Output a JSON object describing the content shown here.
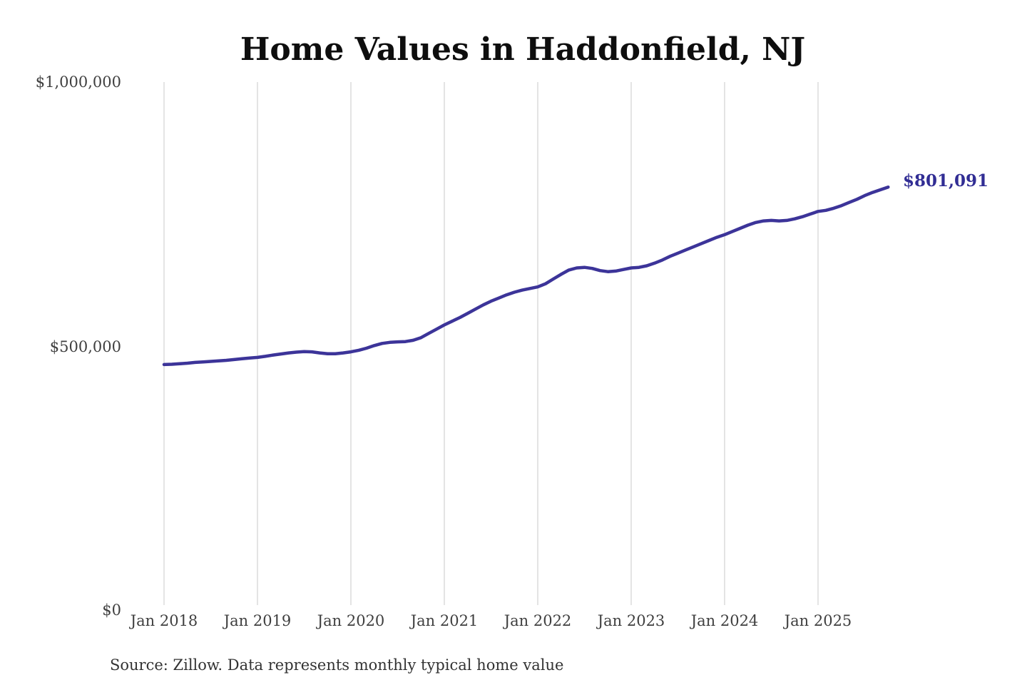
{
  "chart_data": {
    "type": "line",
    "title": "Home Values in Haddonfield, NJ",
    "source_note": "Source: Zillow. Data represents monthly typical home value",
    "end_label": "$801,091",
    "latest_value": 801091,
    "line_color": "#3c3499",
    "end_label_color": "#312d94",
    "gridline_color": "#c9c9c9",
    "grid": "vertical-only",
    "ylim": [
      0,
      1000000
    ],
    "y_ticks": [
      {
        "label": "$1,000,000",
        "value": 1000000
      },
      {
        "label": "$500,000",
        "value": 500000
      },
      {
        "label": "$0",
        "value": 0
      }
    ],
    "x_ticks": [
      "Jan 2018",
      "Jan 2019",
      "Jan 2020",
      "Jan 2021",
      "Jan 2022",
      "Jan 2023",
      "Jan 2024",
      "Jan 2025"
    ],
    "series": [
      {
        "name": "Typical home value",
        "months": [
          "2018-01",
          "2018-02",
          "2018-03",
          "2018-04",
          "2018-05",
          "2018-06",
          "2018-07",
          "2018-08",
          "2018-09",
          "2018-10",
          "2018-11",
          "2018-12",
          "2019-01",
          "2019-02",
          "2019-03",
          "2019-04",
          "2019-05",
          "2019-06",
          "2019-07",
          "2019-08",
          "2019-09",
          "2019-10",
          "2019-11",
          "2019-12",
          "2020-01",
          "2020-02",
          "2020-03",
          "2020-04",
          "2020-05",
          "2020-06",
          "2020-07",
          "2020-08",
          "2020-09",
          "2020-10",
          "2020-11",
          "2020-12",
          "2021-01",
          "2021-02",
          "2021-03",
          "2021-04",
          "2021-05",
          "2021-06",
          "2021-07",
          "2021-08",
          "2021-09",
          "2021-10",
          "2021-11",
          "2021-12",
          "2022-01",
          "2022-02",
          "2022-03",
          "2022-04",
          "2022-05",
          "2022-06",
          "2022-07",
          "2022-08",
          "2022-09",
          "2022-10",
          "2022-11",
          "2022-12",
          "2023-01",
          "2023-02",
          "2023-03",
          "2023-04",
          "2023-05",
          "2023-06",
          "2023-07",
          "2023-08",
          "2023-09",
          "2023-10",
          "2023-11",
          "2023-12",
          "2024-01",
          "2024-02",
          "2024-03",
          "2024-04",
          "2024-05",
          "2024-06",
          "2024-07",
          "2024-08",
          "2024-09",
          "2024-10",
          "2024-11",
          "2024-12",
          "2025-01",
          "2025-02",
          "2025-03",
          "2025-04",
          "2025-05",
          "2025-06",
          "2025-07",
          "2025-08",
          "2025-09",
          "2025-10"
        ],
        "values": [
          465000,
          465500,
          466500,
          467500,
          469000,
          470000,
          471000,
          472000,
          473000,
          474500,
          476000,
          477500,
          478500,
          480500,
          483000,
          485000,
          487000,
          488500,
          489500,
          489000,
          487000,
          485500,
          485500,
          487000,
          489000,
          492000,
          496000,
          501000,
          505000,
          507000,
          508000,
          508500,
          511000,
          516000,
          524000,
          532000,
          540000,
          547000,
          554000,
          562000,
          570000,
          578000,
          585000,
          591000,
          597000,
          602000,
          606000,
          609000,
          612000,
          618000,
          627000,
          636000,
          644000,
          648000,
          649000,
          647000,
          643000,
          641000,
          642000,
          645000,
          648000,
          649000,
          652000,
          657000,
          663000,
          670000,
          676000,
          682000,
          688000,
          694000,
          700000,
          706000,
          711000,
          717000,
          723000,
          729000,
          734000,
          737000,
          738000,
          737000,
          738000,
          741000,
          745000,
          750000,
          755000,
          757000,
          761000,
          766000,
          772000,
          778000,
          785000,
          791000,
          796000,
          801091
        ]
      }
    ]
  }
}
